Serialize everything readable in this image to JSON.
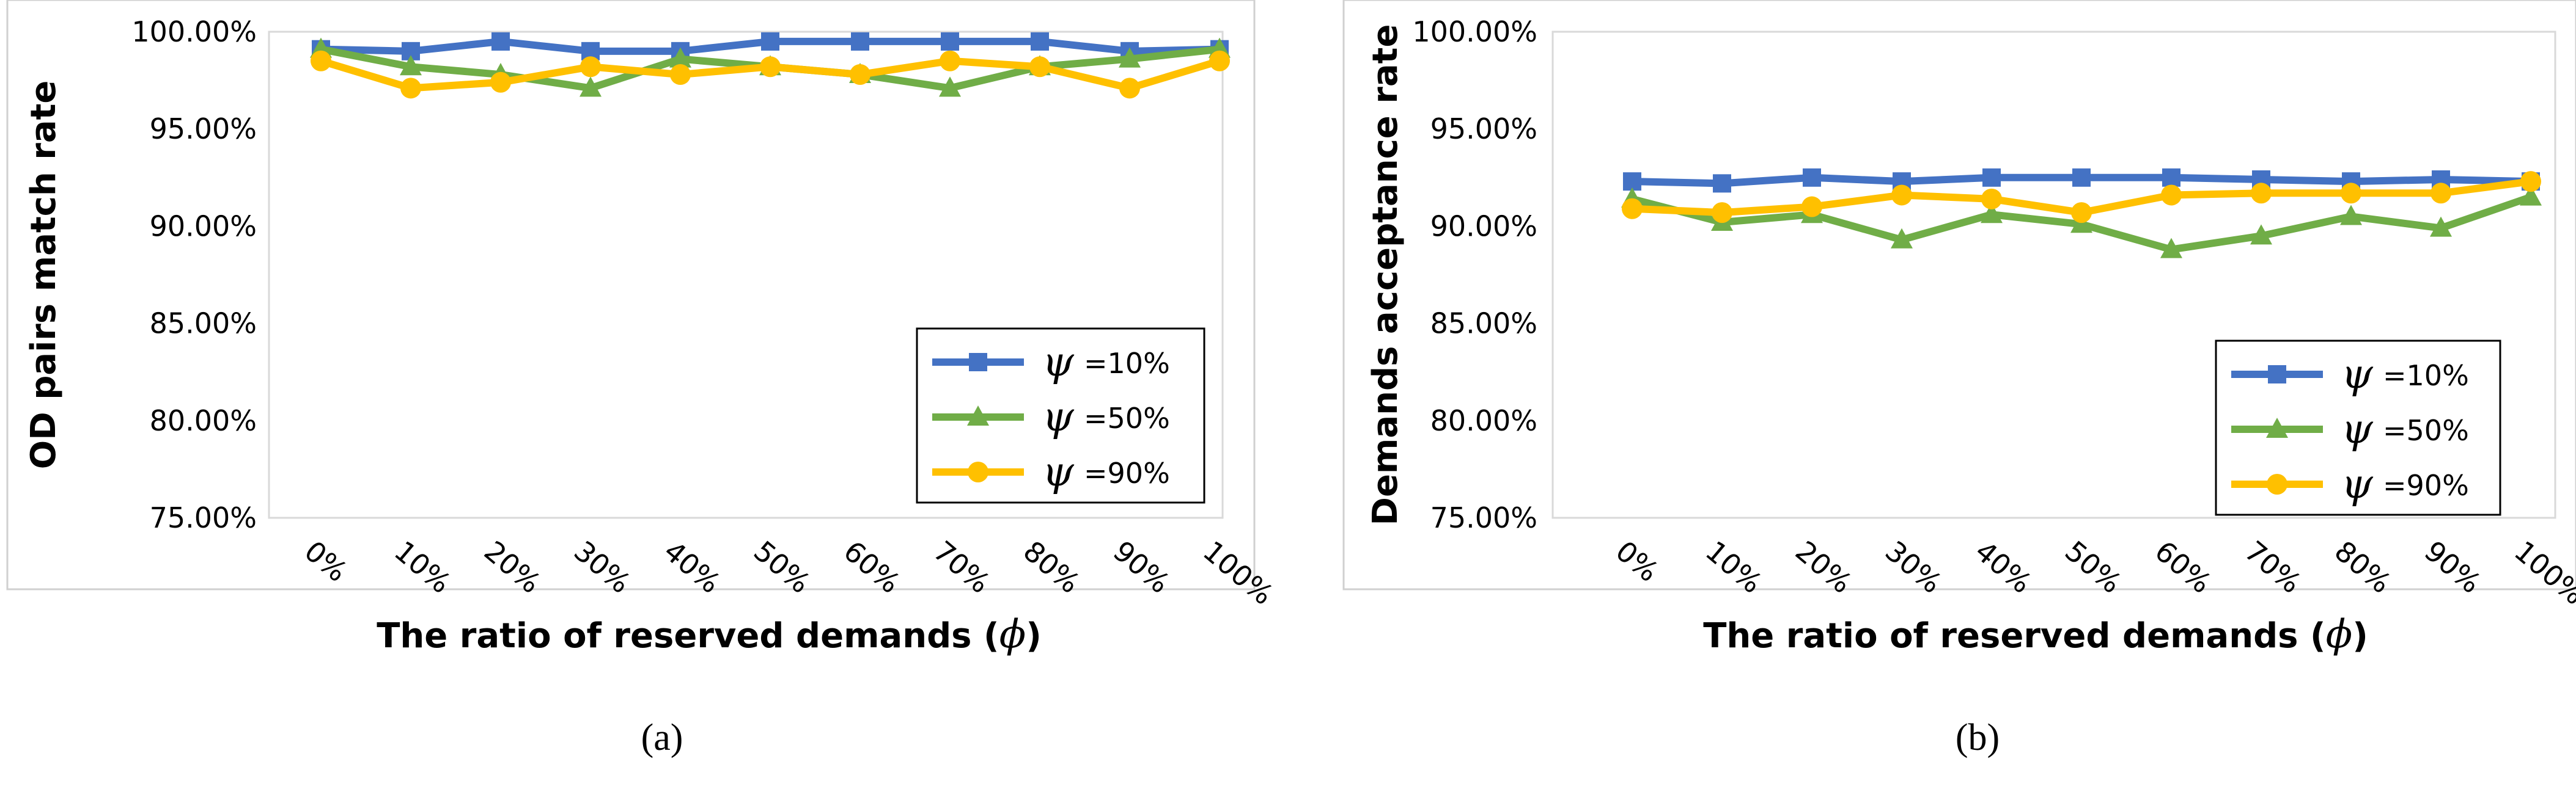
{
  "chart_data": [
    {
      "type": "line",
      "panel_label": "(a)",
      "ylabel": "OD pairs match rate",
      "xlabel": "The ratio of reserved demands (",
      "xlabel_symbol": "ϕ",
      "xlabel_close": ")",
      "categories": [
        "0%",
        "10%",
        "20%",
        "30%",
        "40%",
        "50%",
        "60%",
        "70%",
        "80%",
        "90%",
        "100%"
      ],
      "ylim": [
        75,
        100
      ],
      "yticks": [
        "75.00%",
        "80.00%",
        "85.00%",
        "90.00%",
        "95.00%",
        "100.00%"
      ],
      "legend_position": "bottom-right",
      "series": [
        {
          "name": "=10%",
          "symbol": "ψ",
          "color": "#4472C4",
          "marker": "square",
          "values": [
            99.1,
            99.0,
            99.5,
            99.0,
            99.0,
            99.5,
            99.5,
            99.5,
            99.5,
            99.0,
            99.1
          ]
        },
        {
          "name": "=50%",
          "symbol": "ψ",
          "color": "#70AD47",
          "marker": "triangle",
          "values": [
            99.1,
            98.2,
            97.8,
            97.1,
            98.6,
            98.2,
            97.8,
            97.1,
            98.2,
            98.6,
            99.1
          ]
        },
        {
          "name": "=90%",
          "symbol": "ψ",
          "color": "#FFC000",
          "marker": "circle",
          "values": [
            98.5,
            97.1,
            97.4,
            98.2,
            97.8,
            98.2,
            97.8,
            98.5,
            98.2,
            97.1,
            98.5
          ]
        }
      ]
    },
    {
      "type": "line",
      "panel_label": "(b)",
      "ylabel": "Demands acceptance rate",
      "xlabel": "The ratio of reserved demands (",
      "xlabel_symbol": "ϕ",
      "xlabel_close": ")",
      "categories": [
        "0%",
        "10%",
        "20%",
        "30%",
        "40%",
        "50%",
        "60%",
        "70%",
        "80%",
        "90%",
        "100%"
      ],
      "ylim": [
        75,
        100
      ],
      "yticks": [
        "75.00%",
        "80.00%",
        "85.00%",
        "90.00%",
        "95.00%",
        "100.00%"
      ],
      "legend_position": "bottom-right",
      "series": [
        {
          "name": "=10%",
          "symbol": "ψ",
          "color": "#4472C4",
          "marker": "square",
          "values": [
            92.3,
            92.2,
            92.5,
            92.3,
            92.5,
            92.5,
            92.5,
            92.4,
            92.3,
            92.4,
            92.3
          ]
        },
        {
          "name": "=50%",
          "symbol": "ψ",
          "color": "#70AD47",
          "marker": "triangle",
          "values": [
            91.4,
            90.2,
            90.6,
            89.3,
            90.6,
            90.1,
            88.8,
            89.5,
            90.5,
            89.9,
            91.5
          ]
        },
        {
          "name": "=90%",
          "symbol": "ψ",
          "color": "#FFC000",
          "marker": "circle",
          "values": [
            90.9,
            90.7,
            91.0,
            91.6,
            91.4,
            90.7,
            91.6,
            91.7,
            91.7,
            91.7,
            92.3
          ]
        }
      ]
    }
  ]
}
